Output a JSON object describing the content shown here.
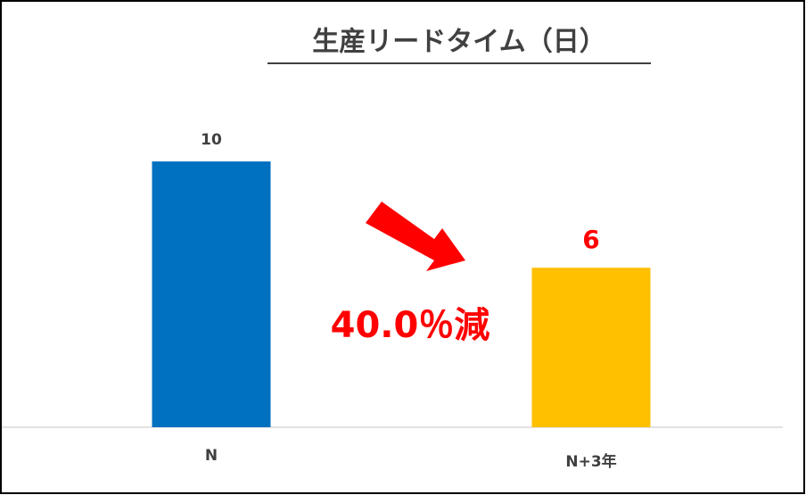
{
  "chart_data": {
    "type": "bar",
    "title": "生産リードタイム（日）",
    "categories": [
      "N",
      "N+3年"
    ],
    "values": [
      10,
      6
    ],
    "colors": [
      "#0070c0",
      "#ffc000"
    ],
    "label_colors": [
      "#404040",
      "#ff0000"
    ],
    "ylim": [
      0,
      10
    ],
    "annotation": "40.0％減"
  }
}
